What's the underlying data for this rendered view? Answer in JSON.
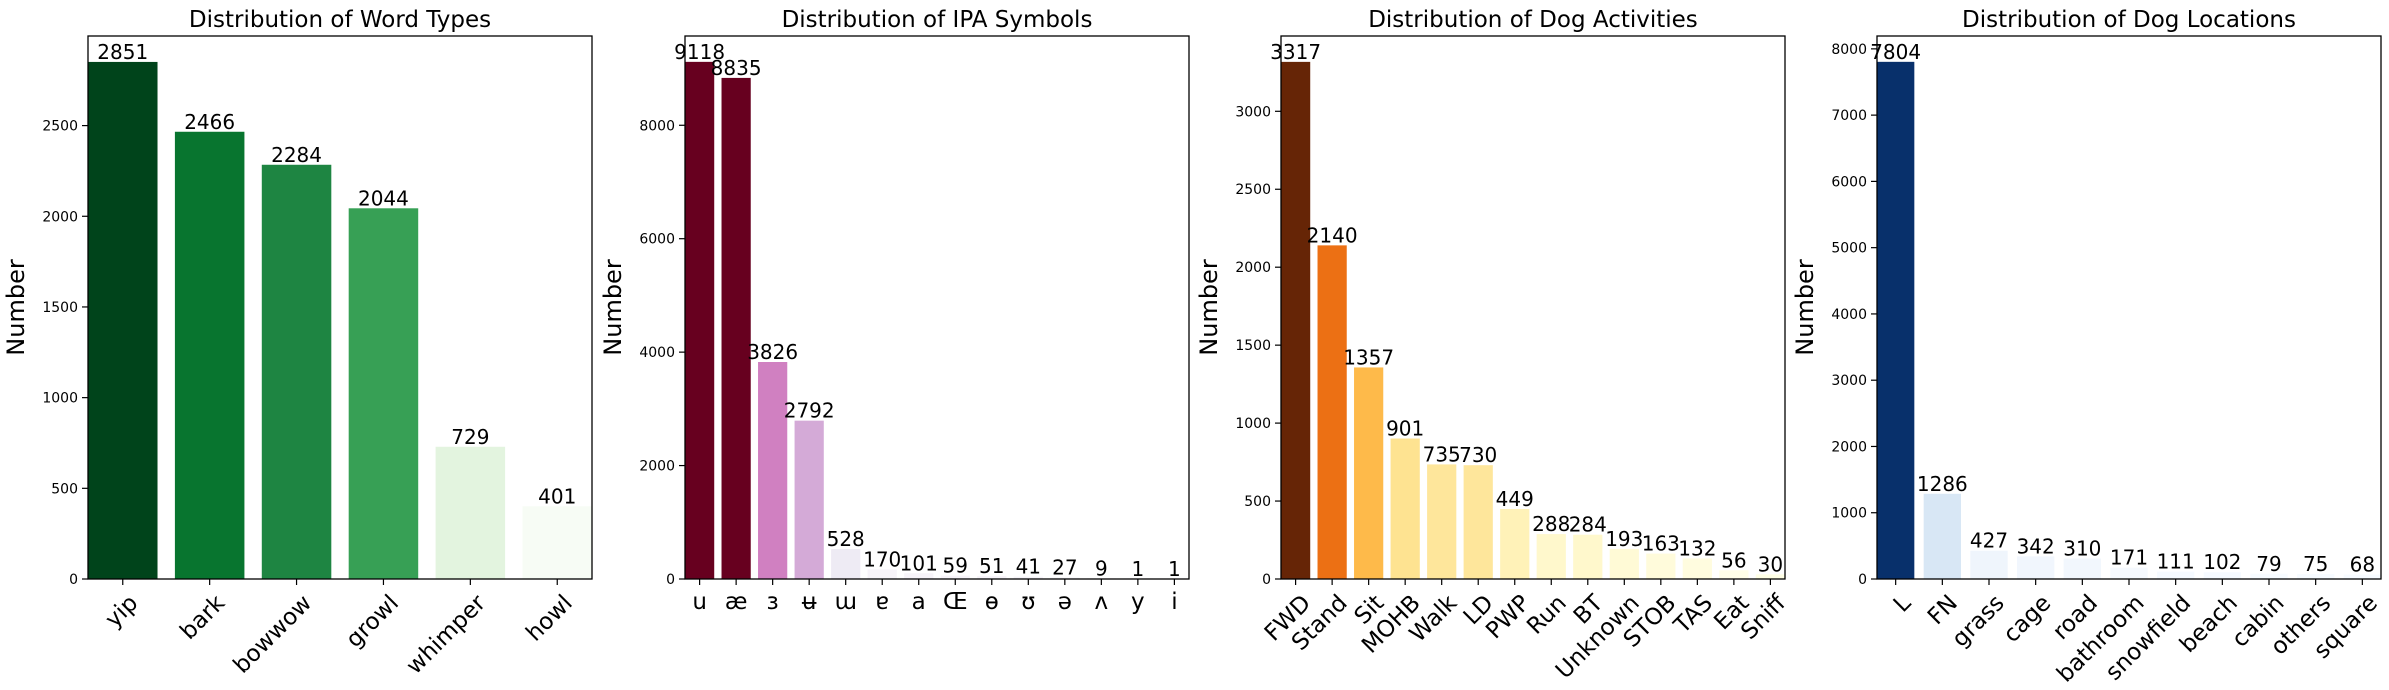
{
  "chart_data": [
    {
      "type": "bar",
      "title": "Distribution of Word Types",
      "xlabel": "",
      "ylabel": "Number",
      "ylim": [
        0,
        2994
      ],
      "yticks": [
        0,
        500,
        1000,
        1500,
        2000,
        2500
      ],
      "categories": [
        "yip",
        "bark",
        "bowwow",
        "growl",
        "whimper",
        "howl"
      ],
      "values": [
        2851,
        2466,
        2284,
        2044,
        729,
        401
      ],
      "colors": [
        "#00441b",
        "#08752f",
        "#1e8542",
        "#37a055",
        "#e3f4df",
        "#f7fcf5"
      ],
      "grid": false
    },
    {
      "type": "bar",
      "title": "Distribution of IPA Symbols",
      "xlabel": "",
      "ylabel": "Number",
      "ylim": [
        0,
        9574
      ],
      "yticks": [
        0,
        2000,
        4000,
        6000,
        8000
      ],
      "categories": [
        "u",
        "æ",
        "ɜ",
        "ʉ",
        "ɯ",
        "ɐ",
        "a",
        "Œ",
        "ɵ",
        "ʊ",
        "ə",
        "ʌ",
        "y",
        "i"
      ],
      "values": [
        9118,
        8835,
        3826,
        2792,
        528,
        170,
        101,
        59,
        51,
        41,
        27,
        9,
        1,
        1
      ],
      "colors": [
        "#67001f",
        "#67001f",
        "#d080c1",
        "#d4aad7",
        "#eeebf4",
        "#f7f4f9",
        "#f7f4f9",
        "#f7f4f9",
        "#f7f4f9",
        "#f7f4f9",
        "#f7f4f9",
        "#f7f4f9",
        "#f7f4f9",
        "#f7f4f9"
      ],
      "grid": false
    },
    {
      "type": "bar",
      "title": "Distribution of Dog Activities",
      "xlabel": "",
      "ylabel": "Number",
      "ylim": [
        0,
        3483
      ],
      "yticks": [
        0,
        500,
        1000,
        1500,
        2000,
        2500,
        3000
      ],
      "categories": [
        "FWD",
        "Stand",
        "Sit",
        "MOHB",
        "Walk",
        "LD",
        "PWP",
        "Run",
        "BT",
        "Unknown",
        "STOB",
        "TAS",
        "Eat",
        "Sniff"
      ],
      "values": [
        3317,
        2140,
        1357,
        901,
        735,
        730,
        449,
        288,
        284,
        193,
        163,
        132,
        56,
        30
      ],
      "colors": [
        "#662506",
        "#ec7014",
        "#feba4a",
        "#fee391",
        "#fee69b",
        "#fee69b",
        "#fff2b8",
        "#fff8cc",
        "#fff8cc",
        "#fffad6",
        "#fffbdb",
        "#fffcdf",
        "#fffee8",
        "#ffffe5"
      ],
      "grid": false
    },
    {
      "type": "bar",
      "title": "Distribution of Dog Locations",
      "xlabel": "",
      "ylabel": "Number",
      "ylim": [
        0,
        8194
      ],
      "yticks": [
        0,
        1000,
        2000,
        3000,
        4000,
        5000,
        6000,
        7000,
        8000
      ],
      "categories": [
        "L",
        "FN",
        "grass",
        "cage",
        "road",
        "bathroom",
        "snowfield",
        "beach",
        "cabin",
        "others",
        "square"
      ],
      "values": [
        7804,
        1286,
        427,
        342,
        310,
        171,
        111,
        102,
        79,
        75,
        68
      ],
      "colors": [
        "#08306b",
        "#d8e7f5",
        "#eff5fc",
        "#f1f6fd",
        "#f2f7fd",
        "#f5f9fe",
        "#f6faff",
        "#f6faff",
        "#f7fbff",
        "#f7fbff",
        "#f7fbff"
      ],
      "grid": false
    }
  ]
}
